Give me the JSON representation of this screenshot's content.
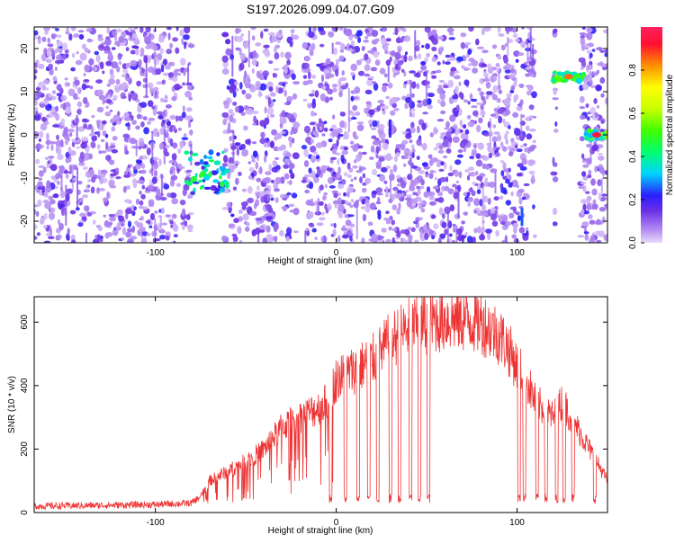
{
  "page": {
    "title": "S197.2026.099.04.07.G09"
  },
  "chart_data": [
    {
      "type": "heatmap",
      "title": "S197.2026.099.04.07.G09",
      "xlabel": "Height of straight line (km)",
      "ylabel": "Frequency (Hz)",
      "xlim": [
        -167,
        150
      ],
      "ylim": [
        -25,
        25
      ],
      "xticks": [
        -100,
        0,
        100
      ],
      "xtick_labels": [
        "-100",
        "0",
        "100"
      ],
      "yticks": [
        20,
        10,
        0,
        -10,
        -20
      ],
      "ytick_labels": [
        "20",
        "10",
        "0",
        "-10",
        "-20"
      ],
      "background_noise": "purple speckle spread across all frequencies",
      "gaps_x_ranges": [
        [
          -80,
          -62
        ],
        [
          -22,
          -18
        ],
        [
          110,
          120
        ],
        [
          122,
          135
        ]
      ],
      "features": [
        {
          "name": "cluster",
          "x_range": [
            -83,
            -60
          ],
          "y_range": [
            -14,
            -4
          ],
          "peak_amplitude": 0.5
        },
        {
          "name": "band",
          "x_range": [
            120,
            137
          ],
          "y_center": 13.5,
          "peak_amplitude": 0.85
        },
        {
          "name": "band",
          "x_range": [
            138,
            150
          ],
          "y_center": 0,
          "peak_amplitude": 0.95
        },
        {
          "name": "streak",
          "x": 29,
          "y_center": 1.5,
          "peak_amplitude": 0.2
        },
        {
          "name": "streak",
          "x": 102,
          "y_center": -19,
          "peak_amplitude": 0.25
        }
      ],
      "colorbar": {
        "label": "Normalized spectral amplitude",
        "range": [
          0,
          1
        ],
        "ticks": [
          0.0,
          0.2,
          0.4,
          0.6,
          0.8
        ],
        "tick_labels": [
          "0.0",
          "0.2",
          "0.4",
          "0.6",
          "0.8"
        ]
      }
    },
    {
      "type": "line",
      "xlabel": "Height of straight line (km)",
      "ylabel": "SNR (10 * v/v)",
      "xlim": [
        -167,
        150
      ],
      "ylim": [
        0,
        680
      ],
      "xticks": [
        -100,
        0,
        100
      ],
      "xtick_labels": [
        "-100",
        "0",
        "100"
      ],
      "yticks": [
        0,
        200,
        400,
        600
      ],
      "ytick_labels": [
        "0",
        "200",
        "400",
        "600"
      ],
      "series": [
        {
          "name": "SNR",
          "color": "#ee3333",
          "envelope": {
            "x": [
              -167,
              -100,
              -80,
              -75,
              -70,
              -60,
              -50,
              -40,
              -30,
              -20,
              -10,
              -5,
              0,
              10,
              20,
              30,
              40,
              50,
              60,
              70,
              80,
              85,
              90,
              95,
              100,
              105,
              110,
              120,
              125,
              130,
              140,
              150
            ],
            "y": [
              20,
              25,
              30,
              50,
              100,
              130,
              160,
              200,
              270,
              300,
              330,
              350,
              420,
              450,
              480,
              540,
              580,
              600,
              610,
              610,
              600,
              580,
              560,
              520,
              460,
              420,
              350,
              300,
              350,
              300,
              200,
              100
            ]
          },
          "dropouts_x": [
            -3,
            5,
            12,
            18,
            23,
            30,
            35,
            41,
            46,
            51,
            101,
            104,
            111,
            116,
            122,
            126,
            131,
            143
          ]
        }
      ]
    }
  ]
}
